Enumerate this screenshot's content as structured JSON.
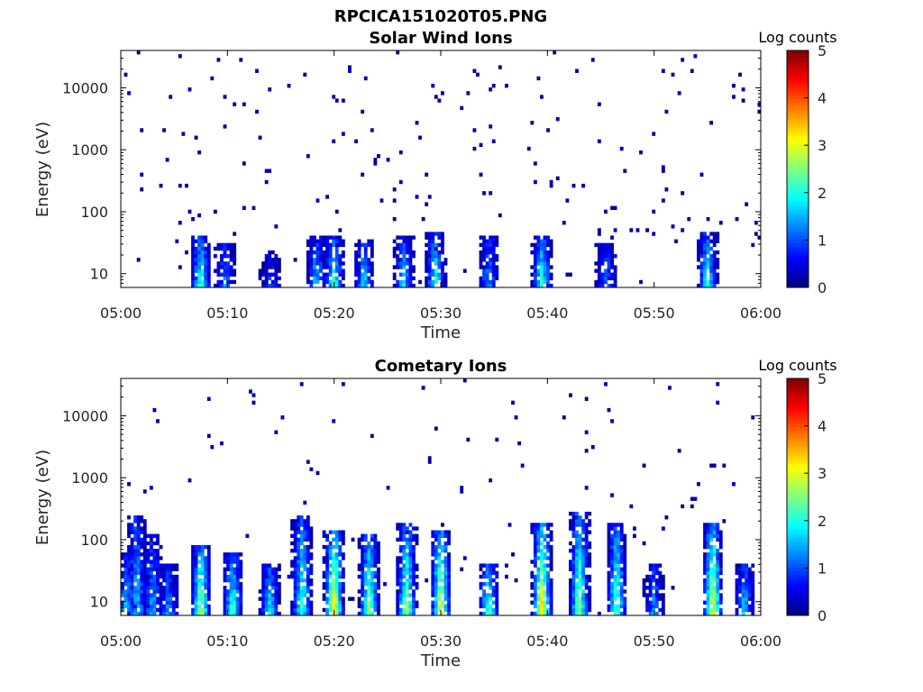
{
  "figure_title": "RPCICA151020T05.PNG",
  "chart_data": [
    {
      "type": "heatmap",
      "title": "Solar Wind Ions",
      "xlabel": "Time",
      "ylabel": "Energy (eV)",
      "x_ticks": [
        "05:00",
        "05:10",
        "05:20",
        "05:30",
        "05:40",
        "05:50",
        "06:00"
      ],
      "x_range_minutes": [
        0,
        60
      ],
      "y_scale": "log",
      "y_ticks": [
        "10",
        "100",
        "1000",
        "10000"
      ],
      "y_range": [
        6,
        40000
      ],
      "colorbar": {
        "label": "Log counts",
        "range": [
          0,
          5
        ],
        "ticks": [
          "0",
          "1",
          "2",
          "3",
          "4",
          "5"
        ],
        "colormap": "jet"
      },
      "bursts": [
        {
          "t": 7.5,
          "peak": 2.3,
          "top": 40
        },
        {
          "t": 9.8,
          "peak": 1.4,
          "top": 30
        },
        {
          "t": 14.0,
          "peak": 1.0,
          "top": 25
        },
        {
          "t": 18.3,
          "peak": 1.8,
          "top": 40
        },
        {
          "t": 20.0,
          "peak": 2.2,
          "top": 40
        },
        {
          "t": 22.8,
          "peak": 1.8,
          "top": 35
        },
        {
          "t": 26.5,
          "peak": 1.8,
          "top": 40
        },
        {
          "t": 29.5,
          "peak": 2.2,
          "top": 45
        },
        {
          "t": 34.5,
          "peak": 1.5,
          "top": 40
        },
        {
          "t": 39.5,
          "peak": 2.3,
          "top": 40
        },
        {
          "t": 45.5,
          "peak": 1.3,
          "top": 30
        },
        {
          "t": 55.0,
          "peak": 2.2,
          "top": 45
        }
      ],
      "background_density": 0.55
    },
    {
      "type": "heatmap",
      "title": "Cometary Ions",
      "xlabel": "Time",
      "ylabel": "Energy (eV)",
      "x_ticks": [
        "05:00",
        "05:10",
        "05:20",
        "05:30",
        "05:40",
        "05:50",
        "06:00"
      ],
      "x_range_minutes": [
        0,
        60
      ],
      "y_scale": "log",
      "y_ticks": [
        "10",
        "100",
        "1000",
        "10000"
      ],
      "y_range": [
        6,
        40000
      ],
      "colorbar": {
        "label": "Log counts",
        "range": [
          0,
          5
        ],
        "ticks": [
          "0",
          "1",
          "2",
          "3",
          "4",
          "5"
        ],
        "colormap": "jet"
      },
      "bursts": [
        {
          "t": 0.5,
          "peak": 1.8,
          "top": 60
        },
        {
          "t": 1.5,
          "peak": 1.8,
          "top": 250
        },
        {
          "t": 3.0,
          "peak": 1.6,
          "top": 120
        },
        {
          "t": 4.5,
          "peak": 1.5,
          "top": 40
        },
        {
          "t": 7.5,
          "peak": 3.0,
          "top": 80
        },
        {
          "t": 10.5,
          "peak": 2.4,
          "top": 60
        },
        {
          "t": 14.0,
          "peak": 2.0,
          "top": 40
        },
        {
          "t": 17.0,
          "peak": 2.3,
          "top": 250
        },
        {
          "t": 20.0,
          "peak": 3.5,
          "top": 150
        },
        {
          "t": 23.3,
          "peak": 2.8,
          "top": 120
        },
        {
          "t": 26.8,
          "peak": 2.8,
          "top": 180
        },
        {
          "t": 30.0,
          "peak": 3.3,
          "top": 150
        },
        {
          "t": 34.5,
          "peak": 2.5,
          "top": 40
        },
        {
          "t": 39.5,
          "peak": 3.5,
          "top": 200
        },
        {
          "t": 43.0,
          "peak": 2.8,
          "top": 300
        },
        {
          "t": 46.5,
          "peak": 2.6,
          "top": 200
        },
        {
          "t": 50.0,
          "peak": 1.5,
          "top": 40
        },
        {
          "t": 55.5,
          "peak": 3.3,
          "top": 200
        },
        {
          "t": 58.5,
          "peak": 1.8,
          "top": 40
        }
      ],
      "background_density": 0.3
    }
  ]
}
